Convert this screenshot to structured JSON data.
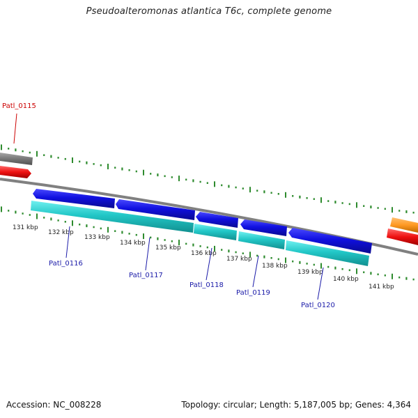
{
  "title": "Pseudoalteromonas atlantica T6c, complete genome",
  "footer": {
    "accession": "Accession: NC_008228",
    "summary": "Topology: circular; Length: 5,187,005 bp; Genes: 4,364"
  },
  "colors": {
    "background": "#ffffff",
    "backbone": "#808080",
    "tick": "#2e8b2e",
    "cds": "#1010e0",
    "mrna": "#22c7c7",
    "label_blue": "#1a1aa8",
    "label_red": "#cc0000",
    "gene_gray": "#777777",
    "gene_red": "#ee1111",
    "gene_orange": "#ff9922"
  },
  "scale": {
    "unit": "kbp",
    "tick_labels": [
      "131 kbp",
      "132 kbp",
      "133 kbp",
      "134 kbp",
      "135 kbp",
      "136 kbp",
      "137 kbp",
      "138 kbp",
      "139 kbp",
      "140 kbp",
      "141 kbp"
    ]
  },
  "gene_labels": [
    "Patl_0115",
    "Patl_0116",
    "Patl_0117",
    "Patl_0118",
    "Patl_0119",
    "Patl_0120"
  ]
}
